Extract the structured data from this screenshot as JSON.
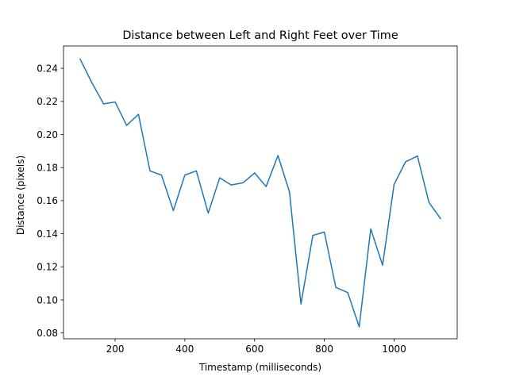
{
  "colors": {
    "background": "#ffffff",
    "series_line": "#1f77b4",
    "axis": "#000000"
  },
  "chart_data": {
    "type": "line",
    "title": "Distance between Left and Right Feet over Time",
    "xlabel": "Timestamp (milliseconds)",
    "ylabel": "Distance (pixels)",
    "xlim": [
      52,
      1181
    ],
    "ylim": [
      0.0765,
      0.2535
    ],
    "grid": false,
    "xticks": [
      200,
      400,
      600,
      800,
      1000
    ],
    "xtick_labels": [
      "200",
      "400",
      "600",
      "800",
      "1000"
    ],
    "yticks": [
      0.08,
      0.1,
      0.12,
      0.14,
      0.16,
      0.18,
      0.2,
      0.22,
      0.24
    ],
    "ytick_labels": [
      "0.08",
      "0.10",
      "0.12",
      "0.14",
      "0.16",
      "0.18",
      "0.20",
      "0.22",
      "0.24"
    ],
    "series": [
      {
        "color": "#1f77b4",
        "x": [
          100,
          133,
          167,
          200,
          233,
          267,
          300,
          333,
          367,
          400,
          433,
          467,
          500,
          533,
          567,
          600,
          633,
          667,
          700,
          733,
          767,
          800,
          833,
          867,
          900,
          933,
          967,
          1000,
          1033,
          1067,
          1100,
          1133
        ],
        "y": [
          0.2455,
          0.2315,
          0.2185,
          0.2197,
          0.2055,
          0.2122,
          0.178,
          0.1755,
          0.154,
          0.1755,
          0.178,
          0.1525,
          0.1738,
          0.1695,
          0.1708,
          0.1768,
          0.1685,
          0.1873,
          0.1653,
          0.0975,
          0.139,
          0.141,
          0.1075,
          0.1045,
          0.0837,
          0.143,
          0.121,
          0.1698,
          0.1835,
          0.187,
          0.159,
          0.1492
        ]
      }
    ]
  }
}
